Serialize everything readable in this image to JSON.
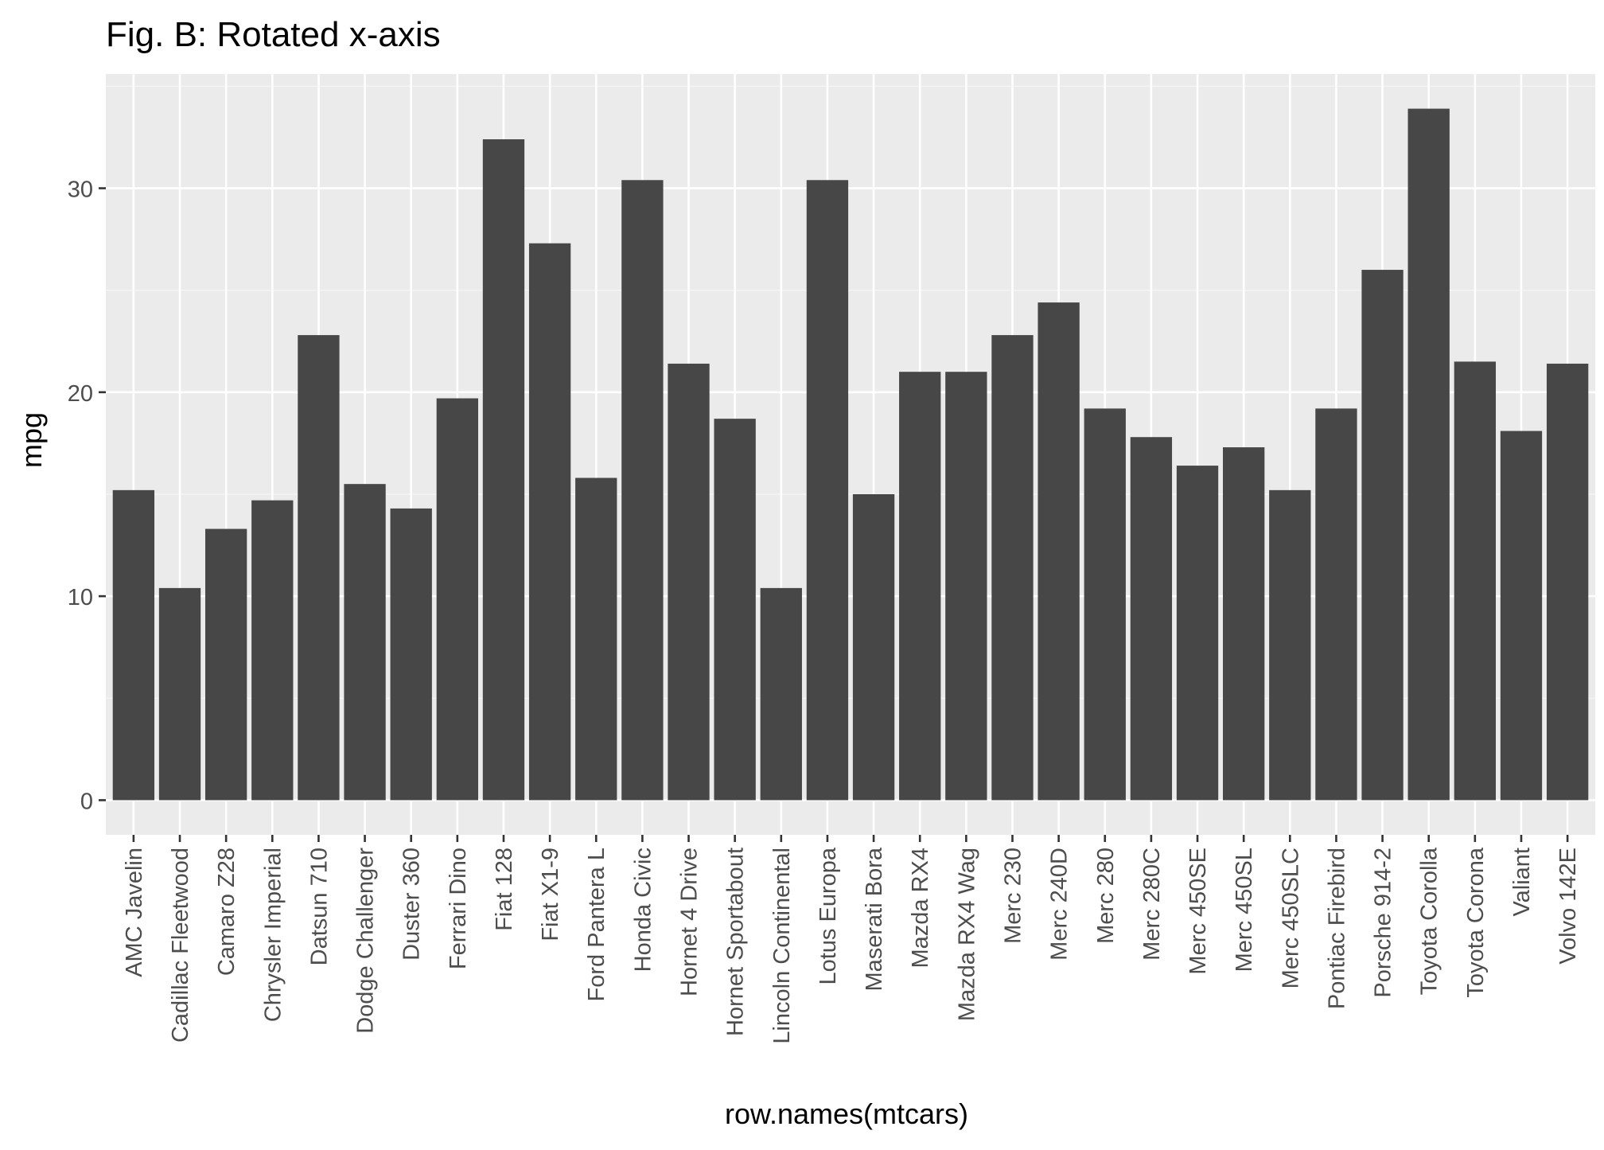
{
  "chart_data": {
    "type": "bar",
    "title": "Fig. B: Rotated x-axis",
    "xlabel": "row.names(mtcars)",
    "ylabel": "mpg",
    "ylim": [
      -1.7,
      35.6
    ],
    "yticks": [
      0,
      10,
      20,
      30
    ],
    "ytick_labels": [
      "0",
      "10",
      "20",
      "30"
    ],
    "grid": true,
    "legend": "none",
    "x_tick_rotation_deg": 90,
    "categories": [
      "AMC Javelin",
      "Cadillac Fleetwood",
      "Camaro Z28",
      "Chrysler Imperial",
      "Datsun 710",
      "Dodge Challenger",
      "Duster 360",
      "Ferrari Dino",
      "Fiat 128",
      "Fiat X1-9",
      "Ford Pantera L",
      "Honda Civic",
      "Hornet 4 Drive",
      "Hornet Sportabout",
      "Lincoln Continental",
      "Lotus Europa",
      "Maserati Bora",
      "Mazda RX4",
      "Mazda RX4 Wag",
      "Merc 230",
      "Merc 240D",
      "Merc 280",
      "Merc 280C",
      "Merc 450SE",
      "Merc 450SL",
      "Merc 450SLC",
      "Pontiac Firebird",
      "Porsche 914-2",
      "Toyota Corolla",
      "Toyota Corona",
      "Valiant",
      "Volvo 142E"
    ],
    "values": [
      15.2,
      10.4,
      13.3,
      14.7,
      22.8,
      15.5,
      14.3,
      19.7,
      32.4,
      27.3,
      15.8,
      30.4,
      21.4,
      18.7,
      10.4,
      30.4,
      15.0,
      21.0,
      21.0,
      22.8,
      24.4,
      19.2,
      17.8,
      16.4,
      17.3,
      15.2,
      19.2,
      26.0,
      33.9,
      21.5,
      18.1,
      21.4
    ],
    "colors": {
      "panel_background": "#ebebeb",
      "grid_major": "#ffffff",
      "grid_minor": "#f5f5f5",
      "bar_fill": "#474747",
      "tick_text": "#4d4d4d",
      "title_text": "#000000",
      "tick_mark": "#333333"
    }
  }
}
